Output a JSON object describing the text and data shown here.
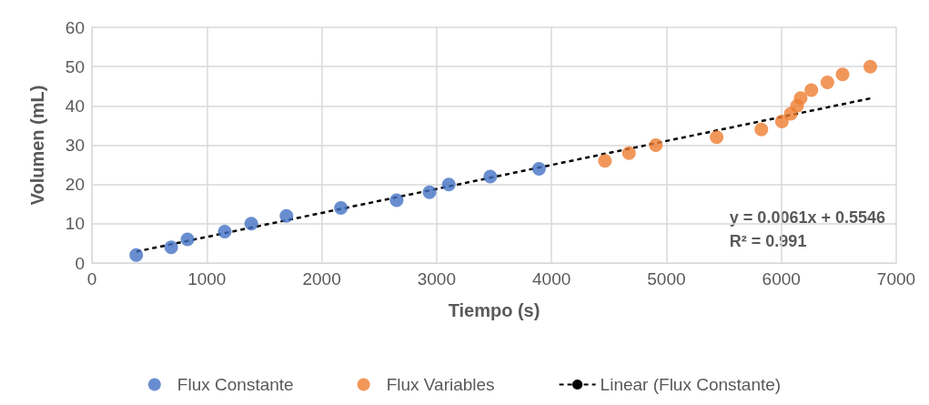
{
  "chart_data": {
    "type": "scatter",
    "xlabel": "Tiempo (s)",
    "ylabel": "Volumen (mL)",
    "xlim": [
      0,
      7000
    ],
    "xticks": [
      0,
      1000,
      2000,
      3000,
      4000,
      5000,
      6000,
      7000
    ],
    "ylim": [
      0,
      60
    ],
    "yticks": [
      0,
      10,
      20,
      30,
      40,
      50,
      60
    ],
    "grid": true,
    "legend": "bottom",
    "marker": "circle",
    "series": [
      {
        "name": "Flux Constante",
        "color": "#4472c4",
        "x": [
          386,
          690,
          832,
          1156,
          1387,
          1693,
          2167,
          2652,
          2938,
          3106,
          3467,
          3891
        ],
        "values": [
          2,
          4,
          6,
          8,
          10,
          12,
          14,
          16,
          18,
          20,
          22,
          24
        ]
      },
      {
        "name": "Flux Variables",
        "color": "#ed7d31",
        "x": [
          4465,
          4674,
          4908,
          5437,
          5826,
          6005,
          6082,
          6137,
          6168,
          6261,
          6401,
          6533,
          6774
        ],
        "values": [
          26,
          28,
          30,
          32,
          34,
          36,
          38,
          40,
          42,
          44,
          46,
          48,
          50
        ]
      },
      {
        "name": "Linear (Flux Constante)",
        "type": "line",
        "line_style": "dashed",
        "marker": "none",
        "color": "#000000",
        "x": [
          386,
          6774
        ],
        "values": [
          2.9,
          41.9
        ]
      }
    ],
    "annotations": [
      "y = 0.0061x + 0.5546\nR² = 0.991"
    ]
  }
}
